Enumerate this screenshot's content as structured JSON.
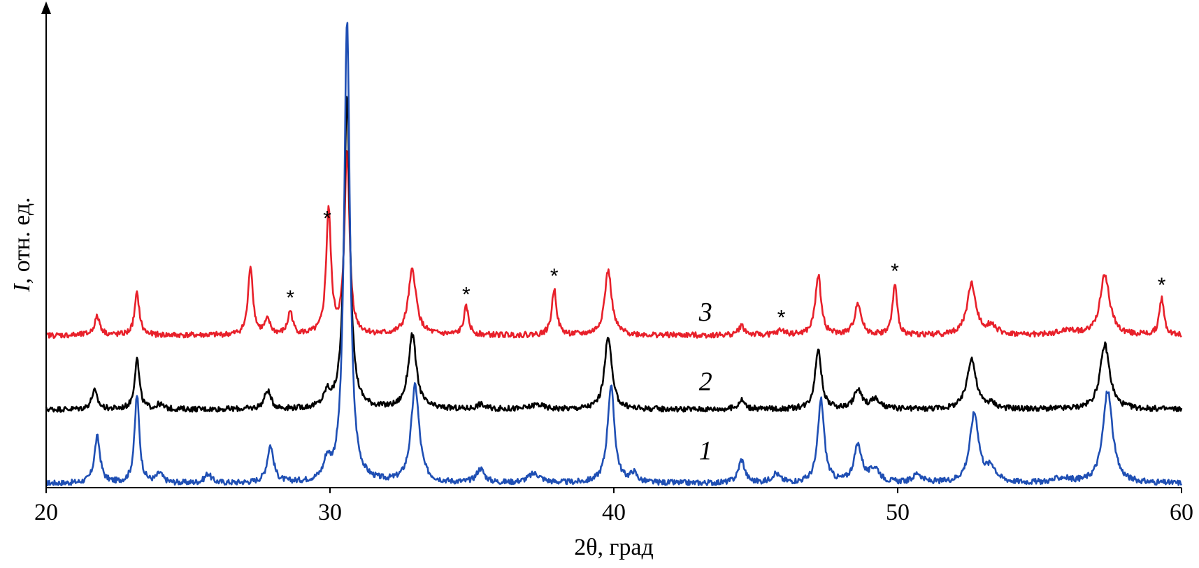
{
  "chart_data": {
    "type": "line",
    "xlabel": "2θ, град",
    "ylabel_italic": "I",
    "ylabel_rest": ", отн. ед.",
    "xlim": [
      20,
      60
    ],
    "xticks": [
      "20",
      "30",
      "40",
      "50",
      "60"
    ],
    "grid": false,
    "colors": {
      "1": "#1f4fb4",
      "2": "#000000",
      "3": "#e8202a"
    },
    "series": [
      {
        "name": "1",
        "baseline": 0.0,
        "peaks": [
          {
            "x": 21.8,
            "h": 0.1,
            "w": 0.18
          },
          {
            "x": 23.2,
            "h": 0.19,
            "w": 0.15
          },
          {
            "x": 24.0,
            "h": 0.02,
            "w": 0.2
          },
          {
            "x": 25.7,
            "h": 0.02,
            "w": 0.2
          },
          {
            "x": 27.9,
            "h": 0.08,
            "w": 0.2
          },
          {
            "x": 29.9,
            "h": 0.04,
            "w": 0.2
          },
          {
            "x": 30.6,
            "h": 1.0,
            "w": 0.18
          },
          {
            "x": 33.0,
            "h": 0.21,
            "w": 0.25
          },
          {
            "x": 35.3,
            "h": 0.03,
            "w": 0.25
          },
          {
            "x": 37.2,
            "h": 0.02,
            "w": 0.4
          },
          {
            "x": 39.9,
            "h": 0.21,
            "w": 0.22
          },
          {
            "x": 40.7,
            "h": 0.02,
            "w": 0.2
          },
          {
            "x": 44.5,
            "h": 0.05,
            "w": 0.2
          },
          {
            "x": 45.7,
            "h": 0.02,
            "w": 0.25
          },
          {
            "x": 47.3,
            "h": 0.18,
            "w": 0.2
          },
          {
            "x": 48.6,
            "h": 0.08,
            "w": 0.25
          },
          {
            "x": 49.2,
            "h": 0.03,
            "w": 0.3
          },
          {
            "x": 50.7,
            "h": 0.02,
            "w": 0.25
          },
          {
            "x": 52.7,
            "h": 0.15,
            "w": 0.28
          },
          {
            "x": 53.3,
            "h": 0.03,
            "w": 0.3
          },
          {
            "x": 55.8,
            "h": 0.01,
            "w": 0.5
          },
          {
            "x": 57.4,
            "h": 0.2,
            "w": 0.3
          }
        ]
      },
      {
        "name": "2",
        "baseline": 0.16,
        "peaks": [
          {
            "x": 21.7,
            "h": 0.04,
            "w": 0.18
          },
          {
            "x": 23.2,
            "h": 0.11,
            "w": 0.15
          },
          {
            "x": 24.0,
            "h": 0.01,
            "w": 0.2
          },
          {
            "x": 27.8,
            "h": 0.04,
            "w": 0.2
          },
          {
            "x": 29.9,
            "h": 0.03,
            "w": 0.2
          },
          {
            "x": 30.6,
            "h": 0.68,
            "w": 0.18
          },
          {
            "x": 32.9,
            "h": 0.16,
            "w": 0.25
          },
          {
            "x": 35.3,
            "h": 0.01,
            "w": 0.25
          },
          {
            "x": 37.3,
            "h": 0.01,
            "w": 0.4
          },
          {
            "x": 39.8,
            "h": 0.16,
            "w": 0.22
          },
          {
            "x": 44.5,
            "h": 0.02,
            "w": 0.2
          },
          {
            "x": 47.2,
            "h": 0.13,
            "w": 0.2
          },
          {
            "x": 48.6,
            "h": 0.04,
            "w": 0.25
          },
          {
            "x": 49.2,
            "h": 0.02,
            "w": 0.3
          },
          {
            "x": 52.6,
            "h": 0.11,
            "w": 0.28
          },
          {
            "x": 53.3,
            "h": 0.01,
            "w": 0.3
          },
          {
            "x": 57.3,
            "h": 0.14,
            "w": 0.3
          }
        ]
      },
      {
        "name": "3",
        "baseline": 0.32,
        "peaks": [
          {
            "x": 21.8,
            "h": 0.04,
            "w": 0.18
          },
          {
            "x": 23.2,
            "h": 0.09,
            "w": 0.15
          },
          {
            "x": 27.2,
            "h": 0.15,
            "w": 0.15
          },
          {
            "x": 27.8,
            "h": 0.03,
            "w": 0.18
          },
          {
            "x": 28.6,
            "h": 0.05,
            "w": 0.15
          },
          {
            "x": 29.95,
            "h": 0.27,
            "w": 0.15
          },
          {
            "x": 30.6,
            "h": 0.4,
            "w": 0.15
          },
          {
            "x": 32.9,
            "h": 0.14,
            "w": 0.25
          },
          {
            "x": 34.8,
            "h": 0.06,
            "w": 0.15
          },
          {
            "x": 37.9,
            "h": 0.1,
            "w": 0.15
          },
          {
            "x": 39.8,
            "h": 0.14,
            "w": 0.22
          },
          {
            "x": 44.5,
            "h": 0.02,
            "w": 0.2
          },
          {
            "x": 45.9,
            "h": 0.01,
            "w": 0.25
          },
          {
            "x": 47.2,
            "h": 0.13,
            "w": 0.18
          },
          {
            "x": 48.6,
            "h": 0.07,
            "w": 0.2
          },
          {
            "x": 49.9,
            "h": 0.11,
            "w": 0.14
          },
          {
            "x": 52.6,
            "h": 0.11,
            "w": 0.28
          },
          {
            "x": 53.3,
            "h": 0.02,
            "w": 0.3
          },
          {
            "x": 56.0,
            "h": 0.01,
            "w": 0.5
          },
          {
            "x": 57.3,
            "h": 0.13,
            "w": 0.3
          },
          {
            "x": 59.3,
            "h": 0.08,
            "w": 0.14
          }
        ]
      }
    ],
    "curve_labels": [
      {
        "text": "1",
        "x": 43.0,
        "level": 0.07
      },
      {
        "text": "2",
        "x": 43.0,
        "level": 0.22
      },
      {
        "text": "3",
        "x": 43.0,
        "level": 0.37
      }
    ],
    "annotations": [
      {
        "text": "*",
        "x": 28.6
      },
      {
        "text": "*",
        "x": 29.9
      },
      {
        "text": "*",
        "x": 34.8
      },
      {
        "text": "*",
        "x": 37.9
      },
      {
        "text": "*",
        "x": 45.9
      },
      {
        "text": "*",
        "x": 49.9
      },
      {
        "text": "*",
        "x": 59.3
      }
    ]
  }
}
